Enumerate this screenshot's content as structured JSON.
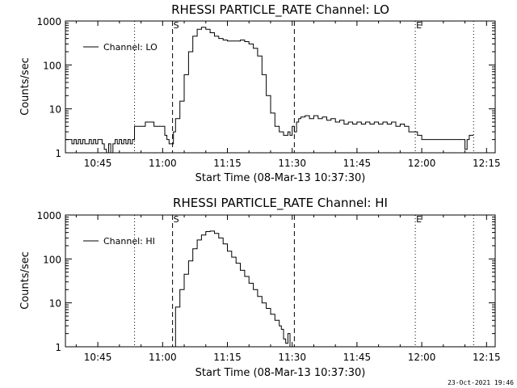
{
  "footer": {
    "timestamp": "23-Oct-2021 19:46"
  },
  "chart_data": [
    {
      "type": "line",
      "title": "RHESSI PARTICLE_RATE Channel: LO",
      "xlabel": "Start Time (08-Mar-13 10:37:30)",
      "ylabel": "Counts/sec",
      "y_scale": "log",
      "ylim": [
        1,
        1000
      ],
      "xlim": [
        37.5,
        137
      ],
      "x_units": "minutes after 10:00 UT (08-Mar-13)",
      "x_tick_labels": [
        "10:45",
        "11:00",
        "11:15",
        "11:30",
        "11:45",
        "12:00",
        "12:15"
      ],
      "x_ticks": [
        45,
        60,
        75,
        90,
        105,
        120,
        135
      ],
      "y_tick_labels": [
        "1",
        "10",
        "100",
        "1000"
      ],
      "y_ticks": [
        1,
        10,
        100,
        1000
      ],
      "legend": {
        "position": "top-left",
        "entries": [
          "Channel: LO"
        ]
      },
      "markers": [
        {
          "label": "S",
          "x": 62.3,
          "style": "dashed"
        },
        {
          "label": "",
          "x": 90.5,
          "style": "dashed"
        },
        {
          "label": "",
          "x": 53.5,
          "style": "dotted"
        },
        {
          "label": "E",
          "x": 118.5,
          "style": "dotted"
        },
        {
          "label": "",
          "x": 132,
          "style": "dotted"
        }
      ],
      "series": [
        {
          "name": "Channel: LO",
          "x": [
            37.5,
            38.5,
            39,
            39.5,
            40,
            40.5,
            41,
            41.5,
            42,
            42.5,
            43,
            43.5,
            44,
            44.5,
            45,
            45.5,
            46,
            46.5,
            47,
            47.5,
            48,
            48.5,
            49,
            49.5,
            50,
            50.5,
            51,
            51.5,
            52,
            52.5,
            53,
            53.5,
            54,
            55,
            56,
            57,
            58,
            59,
            60,
            60.5,
            61,
            61.5,
            62,
            62.5,
            63,
            64,
            65,
            66,
            67,
            68,
            69,
            70,
            71,
            72,
            73,
            74,
            75,
            76,
            77,
            78,
            79,
            80,
            81,
            82,
            83,
            84,
            85,
            86,
            87,
            88,
            89,
            89.5,
            90,
            90.5,
            91,
            91.5,
            92,
            93,
            94,
            95,
            96,
            97,
            98,
            99,
            100,
            101,
            102,
            103,
            104,
            105,
            106,
            107,
            108,
            109,
            110,
            111,
            112,
            113,
            114,
            115,
            116,
            117,
            118,
            119,
            120,
            121,
            122,
            123,
            124,
            125,
            126,
            127,
            128,
            129,
            130,
            130.5,
            131,
            132
          ],
          "y": [
            2,
            2,
            1.6,
            2,
            1.6,
            2,
            1.6,
            2,
            1.6,
            1.6,
            2,
            1.6,
            2,
            1.6,
            2,
            2,
            1.6,
            1.2,
            1,
            1.6,
            1,
            1.6,
            2,
            1.6,
            2,
            1.6,
            2,
            1.6,
            2,
            1.6,
            2,
            4,
            4,
            4,
            5,
            5,
            4,
            4,
            4,
            2.5,
            2,
            1.6,
            1.6,
            3,
            6,
            15,
            60,
            200,
            450,
            650,
            720,
            650,
            540,
            450,
            400,
            370,
            350,
            350,
            350,
            370,
            340,
            300,
            240,
            160,
            60,
            20,
            8,
            4,
            3,
            2.5,
            3,
            2.5,
            4,
            3,
            5,
            6,
            6.5,
            7,
            6,
            7,
            6,
            6.5,
            5.5,
            6,
            5,
            5.5,
            4.5,
            5,
            4.5,
            5,
            4.5,
            5,
            4.5,
            5,
            4.5,
            5,
            4.5,
            5,
            4,
            4.5,
            4,
            3,
            3,
            2.5,
            2,
            2,
            2,
            2,
            2,
            2,
            2,
            2,
            2,
            2,
            1.2,
            2,
            2.5,
            2.5
          ]
        }
      ]
    },
    {
      "type": "line",
      "title": "RHESSI PARTICLE_RATE Channel: HI",
      "xlabel": "Start Time (08-Mar-13 10:37:30)",
      "ylabel": "Counts/sec",
      "y_scale": "log",
      "ylim": [
        1,
        1000
      ],
      "xlim": [
        37.5,
        137
      ],
      "x_units": "minutes after 10:00 UT (08-Mar-13)",
      "x_tick_labels": [
        "10:45",
        "11:00",
        "11:15",
        "11:30",
        "11:45",
        "12:00",
        "12:15"
      ],
      "x_ticks": [
        45,
        60,
        75,
        90,
        105,
        120,
        135
      ],
      "y_tick_labels": [
        "1",
        "10",
        "100",
        "1000"
      ],
      "y_ticks": [
        1,
        10,
        100,
        1000
      ],
      "legend": {
        "position": "top-left",
        "entries": [
          "Channel: HI"
        ]
      },
      "markers": [
        {
          "label": "S",
          "x": 62.3,
          "style": "dashed"
        },
        {
          "label": "",
          "x": 90.5,
          "style": "dashed"
        },
        {
          "label": "",
          "x": 53.5,
          "style": "dotted"
        },
        {
          "label": "E",
          "x": 118.5,
          "style": "dotted"
        },
        {
          "label": "",
          "x": 132,
          "style": "dotted"
        }
      ],
      "series": [
        {
          "name": "Channel: HI",
          "x": [
            62.5,
            63,
            64,
            65,
            66,
            67,
            68,
            69,
            70,
            71,
            72,
            73,
            74,
            75,
            76,
            77,
            78,
            79,
            80,
            81,
            82,
            83,
            84,
            85,
            86,
            87,
            87.5,
            88,
            88.5,
            89,
            89.5
          ],
          "y": [
            1,
            8,
            20,
            45,
            90,
            170,
            270,
            350,
            420,
            430,
            380,
            300,
            220,
            150,
            110,
            80,
            55,
            40,
            28,
            20,
            14,
            10,
            7.5,
            5.5,
            4,
            3,
            2.5,
            1.5,
            1.2,
            2,
            1
          ]
        }
      ]
    }
  ]
}
